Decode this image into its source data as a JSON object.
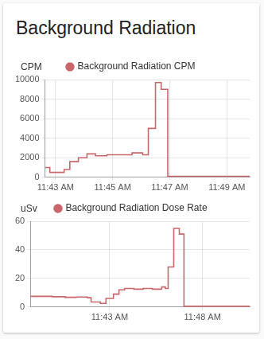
{
  "card": {
    "title": "Background Radiation"
  },
  "chart_data": [
    {
      "type": "line",
      "y_label": "CPM",
      "legend": "top",
      "grid": true,
      "x": [
        702.63,
        702.8,
        703.3,
        703.5,
        703.8,
        704.1,
        704.4,
        704.8,
        705.68,
        706.05,
        706.25,
        706.5,
        706.7,
        706.93,
        709.8
      ],
      "series": [
        {
          "name": "Background Radiation CPM",
          "color": "#c9666a",
          "line_style": "step",
          "values": [
            1000,
            500,
            800,
            1600,
            2000,
            2400,
            2200,
            2300,
            2500,
            2300,
            5000,
            9700,
            9000,
            100,
            100
          ]
        }
      ],
      "xlim": [
        702.63,
        709.8
      ],
      "xticks": [
        {
          "value": 703,
          "label": "11:43 AM"
        },
        {
          "value": 705,
          "label": "11:45 AM"
        },
        {
          "value": 707,
          "label": "11:47 AM"
        },
        {
          "value": 709,
          "label": "11:49 AM"
        }
      ],
      "ylim": [
        0,
        10000
      ],
      "yticks": [
        0,
        2000,
        4000,
        6000,
        8000,
        10000
      ]
    },
    {
      "type": "line",
      "y_label": "uSv",
      "legend": "top",
      "grid": true,
      "x": [
        698.73,
        699.9,
        700.6,
        701.2,
        701.8,
        702.0,
        702.5,
        702.8,
        703.2,
        703.5,
        703.8,
        704.3,
        704.8,
        705.3,
        705.8,
        706.0,
        706.15,
        706.45,
        706.75,
        707.0,
        710.54
      ],
      "series": [
        {
          "name": "Background Radiation Dose Rate",
          "color": "#c9666a",
          "line_style": "step",
          "values": [
            7.5,
            7.2,
            6.8,
            7.0,
            6.5,
            3.5,
            2.5,
            6.0,
            9.0,
            12.0,
            13.0,
            12.5,
            13.0,
            12.5,
            14.0,
            13.0,
            28,
            55,
            51,
            0.5,
            0.5
          ]
        }
      ],
      "xlim": [
        698.73,
        710.54
      ],
      "xticks": [
        {
          "value": 703,
          "label": "11:43 AM"
        },
        {
          "value": 708,
          "label": "11:48 AM"
        }
      ],
      "ylim": [
        0,
        60
      ],
      "yticks": [
        0,
        20,
        40,
        60
      ]
    }
  ]
}
